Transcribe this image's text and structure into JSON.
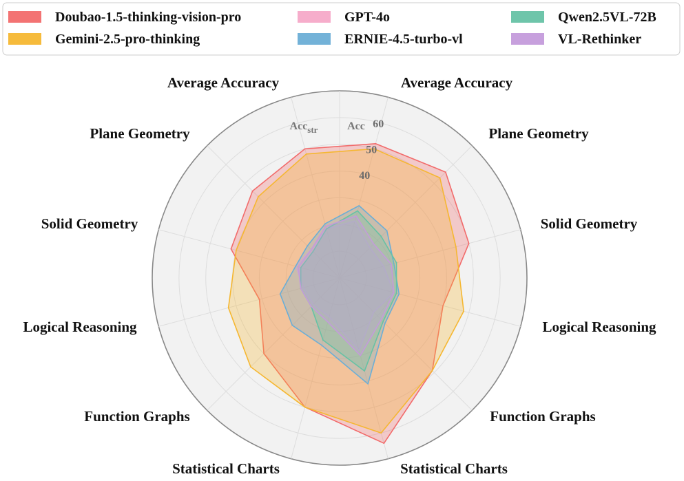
{
  "chart_data": {
    "type": "radar",
    "legend_position": "top",
    "grid": true,
    "radial_range": [
      0,
      70
    ],
    "radial_ticks": [
      40,
      50,
      60
    ],
    "ring_labels": {
      "acc": "Acc",
      "acc_str_main": "Acc",
      "acc_str_sub": "str"
    },
    "categories": [
      "Average Accuracy",
      "Plane Geometry",
      "Solid Geometry",
      "Logical Reasoning",
      "Function Graphs",
      "Statistical Charts",
      "Statistical Charts",
      "Function Graphs",
      "Logical Reasoning",
      "Solid Geometry",
      "Plane Geometry",
      "Average Accuracy"
    ],
    "series": [
      {
        "name": "Doubao-1.5-thinking-vision-pro",
        "color": "#f26b6b",
        "values": [
          52,
          56,
          50,
          40,
          49,
          64,
          50,
          40,
          31,
          42,
          46,
          50
        ]
      },
      {
        "name": "Gemini-2.5-pro-thinking",
        "color": "#f5b731",
        "values": [
          50,
          53,
          45,
          48,
          49,
          60,
          50,
          47,
          43,
          40,
          43,
          48
        ]
      },
      {
        "name": "GPT-4o",
        "color": "#f5a9c8",
        "values": [
          22,
          16,
          17,
          21,
          18,
          28,
          15,
          14,
          14,
          17,
          15,
          19
        ]
      },
      {
        "name": "ERNIE-4.5-turbo-vl",
        "color": "#6baed6",
        "values": [
          28,
          25,
          21,
          23,
          24,
          41,
          26,
          25,
          23,
          17,
          17,
          21
        ]
      },
      {
        "name": "Qwen2.5VL-72B",
        "color": "#66c2a5",
        "values": [
          26,
          22,
          22,
          22,
          23,
          36,
          24,
          15,
          15,
          15,
          14,
          19
        ]
      },
      {
        "name": "VL-Rethinker",
        "color": "#c49bdb",
        "values": [
          24,
          18,
          20,
          21,
          22,
          30,
          17,
          15,
          15,
          16,
          15,
          20
        ]
      }
    ]
  }
}
